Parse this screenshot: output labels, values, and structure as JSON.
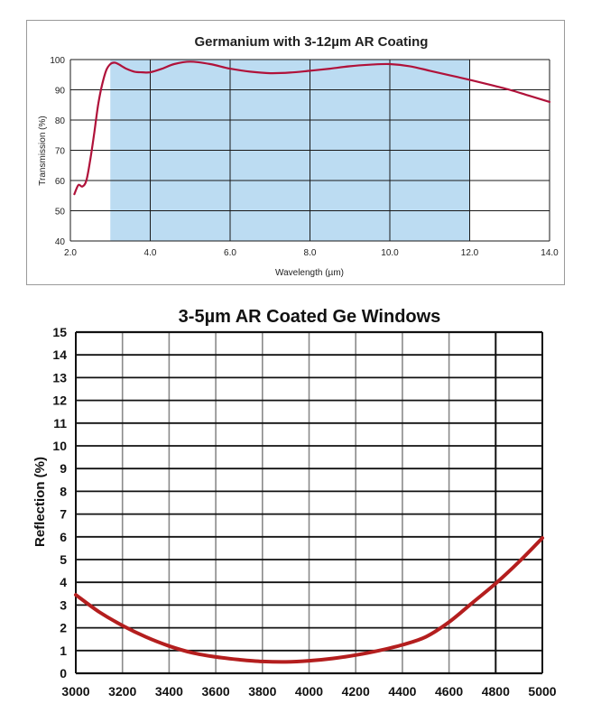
{
  "chart_data": [
    {
      "type": "line",
      "title": "Germanium with 3-12µm AR Coating",
      "xlabel": "Wavelength (µm)",
      "ylabel": "Transmission (%)",
      "xlim": [
        2.0,
        14.0
      ],
      "ylim": [
        40,
        100
      ],
      "x_ticks": [
        "2.0",
        "4.0",
        "6.0",
        "8.0",
        "10.0",
        "12.0",
        "14.0"
      ],
      "y_ticks": [
        "40",
        "50",
        "60",
        "70",
        "80",
        "90",
        "100"
      ],
      "grid": true,
      "shaded_band": [
        3.0,
        12.0
      ],
      "band_color": "#bcdcf2",
      "line_color": "#b0123a",
      "series": [
        {
          "x": [
            2.1,
            2.2,
            2.3,
            2.4,
            2.5,
            2.6,
            2.7,
            2.8,
            2.9,
            3.0,
            3.1,
            3.2,
            3.4,
            3.6,
            3.8,
            4.0,
            4.3,
            4.6,
            5.0,
            5.5,
            6.0,
            6.5,
            7.0,
            7.5,
            8.0,
            8.5,
            9.0,
            9.5,
            10.0,
            10.5,
            11.0,
            11.5,
            12.0,
            12.5,
            13.0,
            13.5,
            14.0
          ],
          "y": [
            55.5,
            58.5,
            58.0,
            60.0,
            67.0,
            76.0,
            85.5,
            92.0,
            96.5,
            98.5,
            99.0,
            98.5,
            97.0,
            96.0,
            95.8,
            95.8,
            97.0,
            98.5,
            99.3,
            98.5,
            97.0,
            96.0,
            95.5,
            95.7,
            96.3,
            97.0,
            97.8,
            98.3,
            98.5,
            97.8,
            96.3,
            94.8,
            93.3,
            91.7,
            90.0,
            88.0,
            86.0
          ]
        }
      ]
    },
    {
      "type": "line",
      "title": "3-5µm AR Coated Ge Windows",
      "xlabel": "",
      "ylabel": "Reflection (%)",
      "xlim": [
        3000,
        5000
      ],
      "ylim": [
        0,
        15
      ],
      "x_ticks": [
        "3000",
        "3200",
        "3400",
        "3600",
        "3800",
        "4000",
        "4200",
        "4400",
        "4600",
        "4800",
        "5000"
      ],
      "y_ticks": [
        "0",
        "1",
        "2",
        "3",
        "4",
        "5",
        "6",
        "7",
        "8",
        "9",
        "10",
        "11",
        "12",
        "13",
        "14",
        "15"
      ],
      "grid": true,
      "line_color": "#b41e1e",
      "series": [
        {
          "x": [
            3000,
            3100,
            3200,
            3300,
            3400,
            3500,
            3600,
            3700,
            3800,
            3900,
            4000,
            4100,
            4200,
            4300,
            4400,
            4500,
            4600,
            4700,
            4800,
            4900,
            5000
          ],
          "y": [
            3.45,
            2.7,
            2.1,
            1.6,
            1.2,
            0.9,
            0.72,
            0.6,
            0.52,
            0.5,
            0.55,
            0.65,
            0.8,
            1.0,
            1.25,
            1.6,
            2.25,
            3.1,
            3.95,
            4.9,
            5.95
          ]
        }
      ]
    }
  ]
}
